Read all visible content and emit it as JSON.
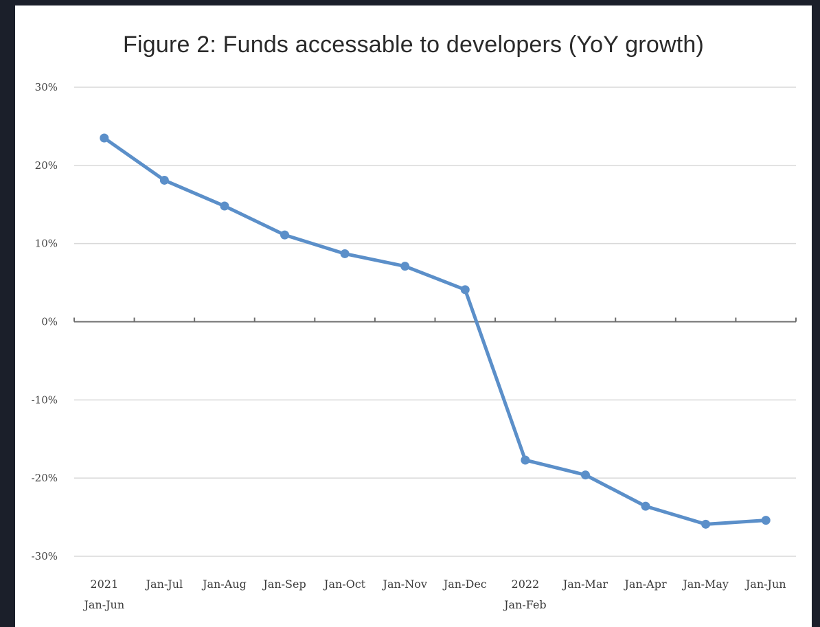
{
  "chart_data": {
    "type": "line",
    "title": "Figure 2: Funds accessable to developers (YoY growth)",
    "xlabel": "",
    "ylabel": "",
    "ylim": [
      -30,
      30
    ],
    "y_ticks": [
      "30%",
      "20%",
      "10%",
      "0%",
      "-10%",
      "-20%",
      "-30%"
    ],
    "y_tick_values": [
      30,
      20,
      10,
      0,
      -10,
      -20,
      -30
    ],
    "grid": true,
    "categories": [
      [
        "2021",
        "Jan-Jun"
      ],
      [
        "Jan-Jul"
      ],
      [
        "Jan-Aug"
      ],
      [
        "Jan-Sep"
      ],
      [
        "Jan-Oct"
      ],
      [
        "Jan-Nov"
      ],
      [
        "Jan-Dec"
      ],
      [
        "2022",
        "Jan-Feb"
      ],
      [
        "Jan-Mar"
      ],
      [
        "Jan-Apr"
      ],
      [
        "Jan-May"
      ],
      [
        "Jan-Jun"
      ]
    ],
    "series": [
      {
        "values": [
          23.5,
          18.1,
          14.8,
          11.1,
          8.7,
          7.1,
          4.1,
          -17.7,
          -19.6,
          -23.6,
          -25.9,
          -25.4
        ],
        "color": "#5b8fc9"
      }
    ]
  }
}
